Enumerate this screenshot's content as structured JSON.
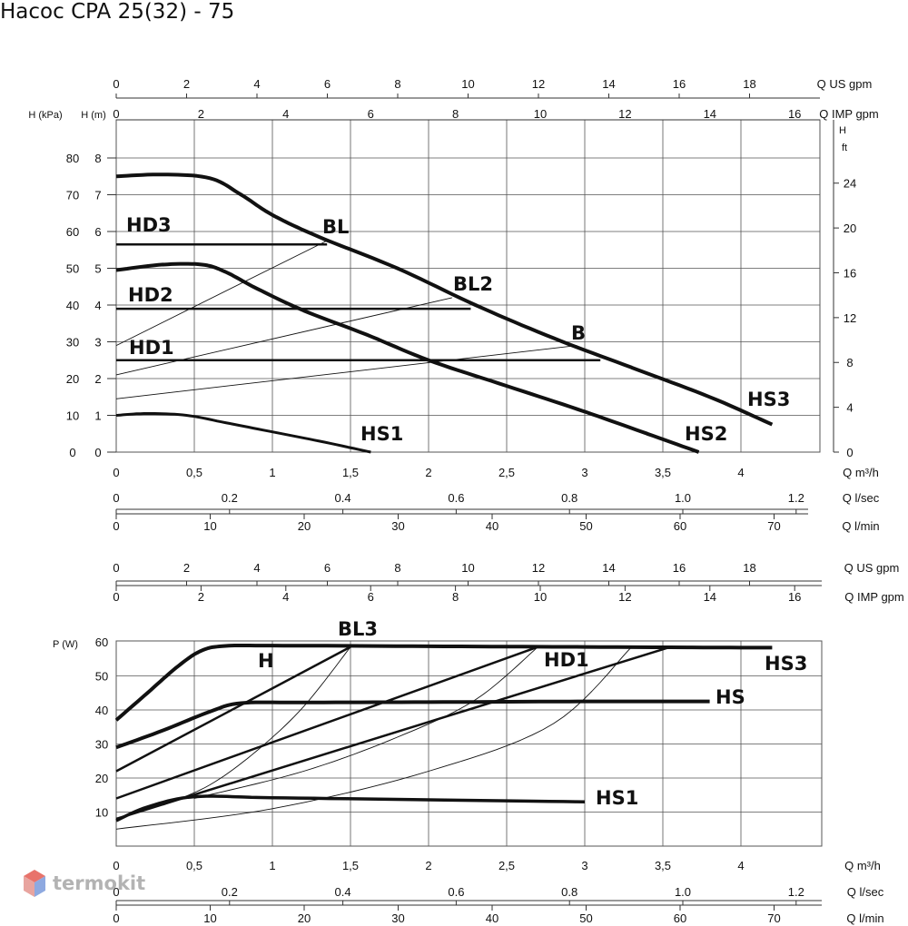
{
  "title": "Насос CPA 25(32) - 75",
  "watermark": "termokit",
  "colors": {
    "curve": "#111111",
    "grid": "#555555",
    "watermark_red": "#e8736b",
    "watermark_blue": "#6b8fd6"
  },
  "chart_data": [
    {
      "type": "line",
      "title": "",
      "xlabel": "Q m³/h",
      "ylabel": "H (m)",
      "xlim": [
        0,
        4.5
      ],
      "ylim": [
        0,
        8
      ],
      "grid": true,
      "axes": {
        "left_kpa_label": "H (kPa)",
        "left_kpa_ticks": [
          "0",
          "10",
          "20",
          "30",
          "40",
          "50",
          "60",
          "70",
          "80"
        ],
        "left_m_label": "H (m)",
        "left_m_ticks": [
          "0",
          "1",
          "2",
          "3",
          "4",
          "5",
          "6",
          "7",
          "8"
        ],
        "right_label_1": "H",
        "right_label_2": "ft",
        "right_ticks": [
          "0",
          "4",
          "8",
          "12",
          "16",
          "20",
          "24"
        ],
        "top_us_label": "Q US gpm",
        "top_us_ticks": [
          "0",
          "2",
          "4",
          "6",
          "8",
          "10",
          "12",
          "14",
          "16",
          "18"
        ],
        "top_imp_label": "Q IMP gpm",
        "top_imp_ticks": [
          "0",
          "2",
          "4",
          "6",
          "8",
          "10",
          "12",
          "14",
          "16"
        ],
        "bottom_m3h_label": "Q m³/h",
        "bottom_m3h_ticks": [
          "0",
          "0,5",
          "1",
          "1,5",
          "2",
          "2,5",
          "3",
          "3,5",
          "4"
        ],
        "bottom_ls_label": "Q l/sec",
        "bottom_ls_ticks": [
          "0",
          "0.2",
          "0.4",
          "0.6",
          "0.8",
          "1.0",
          "1.2"
        ],
        "bottom_lmin_label": "Q l/min",
        "bottom_lmin_ticks": [
          "0",
          "10",
          "20",
          "30",
          "40",
          "50",
          "60",
          "70"
        ]
      },
      "series": [
        {
          "name": "HS3",
          "x": [
            0,
            0.3,
            0.6,
            0.8,
            1.0,
            1.3,
            1.8,
            2.3,
            2.8,
            3.3,
            3.8,
            4.2
          ],
          "y": [
            7.5,
            7.55,
            7.45,
            7.0,
            6.45,
            5.85,
            5.0,
            4.0,
            3.1,
            2.3,
            1.5,
            0.75
          ]
        },
        {
          "name": "HS2",
          "x": [
            0,
            0.3,
            0.55,
            0.7,
            0.9,
            1.2,
            1.6,
            2.0,
            2.5,
            3.0,
            3.4,
            3.73
          ],
          "y": [
            4.95,
            5.1,
            5.1,
            4.9,
            4.45,
            3.85,
            3.2,
            2.5,
            1.8,
            1.1,
            0.5,
            0
          ]
        },
        {
          "name": "HS1",
          "x": [
            0,
            0.2,
            0.45,
            0.7,
            1.0,
            1.3,
            1.63
          ],
          "y": [
            1.0,
            1.05,
            1.0,
            0.8,
            0.55,
            0.3,
            0
          ]
        },
        {
          "name": "HD3",
          "x": [
            0,
            1.35
          ],
          "y": [
            5.65,
            5.65
          ]
        },
        {
          "name": "HD2",
          "x": [
            0,
            2.27
          ],
          "y": [
            3.9,
            3.9
          ]
        },
        {
          "name": "HD1",
          "x": [
            0,
            3.1
          ],
          "y": [
            2.5,
            2.5
          ]
        },
        {
          "name": "BL",
          "x": [
            0,
            1.35
          ],
          "y": [
            2.9,
            5.75
          ]
        },
        {
          "name": "BL2",
          "x": [
            0,
            2.15
          ],
          "y": [
            2.1,
            4.2
          ]
        },
        {
          "name": "B",
          "x": [
            0,
            2.95
          ],
          "y": [
            1.45,
            2.9
          ]
        }
      ],
      "annotations": [
        "HD3",
        "HD2",
        "HD1",
        "BL",
        "BL2",
        "B",
        "HS1",
        "HS2",
        "HS3"
      ]
    },
    {
      "type": "line",
      "title": "",
      "xlabel": "Q m³/h",
      "ylabel": "P (W)",
      "xlim": [
        0,
        4.5
      ],
      "ylim": [
        0,
        60
      ],
      "grid": true,
      "axes": {
        "left_label": "P (W)",
        "left_ticks": [
          "10",
          "20",
          "30",
          "40",
          "50",
          "60"
        ],
        "top_us_label": "Q US gpm",
        "top_us_ticks": [
          "0",
          "2",
          "4",
          "6",
          "8",
          "10",
          "12",
          "14",
          "16",
          "18"
        ],
        "top_imp_label": "Q IMP gpm",
        "top_imp_ticks": [
          "0",
          "2",
          "4",
          "6",
          "8",
          "10",
          "12",
          "14",
          "16"
        ],
        "bottom_m3h_label": "Q m³/h",
        "bottom_m3h_ticks": [
          "0",
          "0,5",
          "1",
          "1,5",
          "2",
          "2,5",
          "3",
          "3,5",
          "4"
        ],
        "bottom_ls_label": "Q l/sec",
        "bottom_ls_ticks": [
          "0",
          "0.2",
          "0.4",
          "0.6",
          "0.8",
          "1.0",
          "1.2"
        ],
        "bottom_lmin_label": "Q l/min",
        "bottom_lmin_ticks": [
          "0",
          "10",
          "20",
          "30",
          "40",
          "50",
          "60",
          "70"
        ]
      },
      "series": [
        {
          "name": "HS3",
          "x": [
            0,
            0.2,
            0.4,
            0.55,
            0.7,
            1.0,
            2.0,
            3.0,
            4.0,
            4.2
          ],
          "y": [
            37,
            45,
            53,
            57.5,
            58.8,
            58.9,
            58.7,
            58.5,
            58.3,
            58.3
          ]
        },
        {
          "name": "HS",
          "x": [
            0,
            0.3,
            0.6,
            0.8,
            1.2,
            2.0,
            3.0,
            3.8
          ],
          "y": [
            29,
            34,
            39.5,
            42,
            42.2,
            42.3,
            42.5,
            42.5
          ]
        },
        {
          "name": "HS1",
          "x": [
            0,
            0.2,
            0.5,
            1.0,
            2.0,
            3.0
          ],
          "y": [
            7.5,
            11.5,
            14.5,
            14.2,
            13.6,
            13.0
          ]
        },
        {
          "name": "BL3",
          "x": [
            0,
            1.5
          ],
          "y": [
            22,
            58.5
          ]
        },
        {
          "name": "HD1",
          "x": [
            0,
            2.7
          ],
          "y": [
            14,
            58.5
          ]
        },
        {
          "name": "B",
          "x": [
            0,
            3.55
          ],
          "y": [
            8,
            58.5
          ]
        },
        {
          "name": "",
          "x": [
            0.3,
            0.6,
            0.9,
            1.2,
            1.5
          ],
          "y": [
            12,
            18,
            28,
            41,
            58.5
          ]
        },
        {
          "name": "",
          "x": [
            0.5,
            1.2,
            1.8,
            2.3,
            2.7
          ],
          "y": [
            14,
            22,
            32,
            43,
            58.5
          ]
        },
        {
          "name": "",
          "x": [
            0,
            1.0,
            2.0,
            2.8,
            3.3
          ],
          "y": [
            5,
            11,
            22,
            36,
            58.5
          ]
        }
      ],
      "annotations": [
        "BL3",
        "H",
        "HD1",
        "HS3",
        "HS",
        "HS1"
      ]
    }
  ]
}
